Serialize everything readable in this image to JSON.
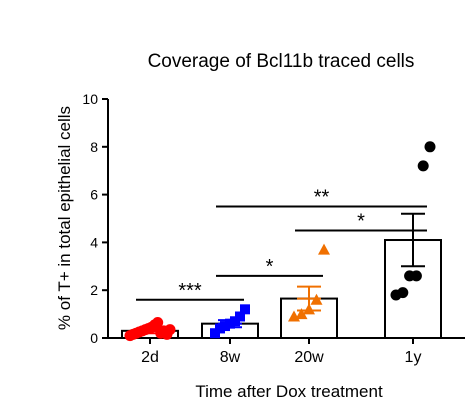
{
  "chart_data": {
    "type": "bar",
    "title": "Coverage of Bcl11b traced cells",
    "xlabel": "Time after Dox treatment",
    "ylabel": "% of T+ in total epithelial cells",
    "ylim": [
      0,
      10
    ],
    "yticks": [
      "0",
      "2",
      "4",
      "6",
      "8",
      "10"
    ],
    "categories": [
      "2d",
      "8w",
      "20w",
      "1y"
    ],
    "means": [
      0.3,
      0.6,
      1.65,
      4.1
    ],
    "error_sem": [
      0.1,
      0.15,
      0.5,
      1.1
    ],
    "points": [
      [
        0.1,
        0.15,
        0.2,
        0.25,
        0.3,
        0.35,
        0.4,
        0.45,
        0.55,
        0.65,
        0.2,
        0.3,
        0.15,
        0.35
      ],
      [
        0.2,
        0.4,
        0.5,
        0.6,
        0.7,
        0.9,
        1.2
      ],
      [
        0.9,
        1.0,
        1.2,
        1.6,
        3.7
      ],
      [
        1.8,
        1.9,
        2.6,
        2.6,
        7.2,
        8.0
      ]
    ],
    "markers": [
      "circle",
      "square",
      "triangle",
      "circle"
    ],
    "colors": [
      "#ff0000",
      "#0000ff",
      "#f07000",
      "#000000"
    ],
    "significance": [
      {
        "from": 0,
        "to": 1,
        "y": 1.6,
        "label": "***"
      },
      {
        "from": 1,
        "to": 2,
        "y": 2.6,
        "label": "*"
      },
      {
        "from": 2,
        "to": 3,
        "y": 4.5,
        "label": "*"
      },
      {
        "from": 1,
        "to": 3,
        "y": 5.5,
        "label": "**"
      }
    ],
    "grid": false,
    "legend": "none"
  }
}
